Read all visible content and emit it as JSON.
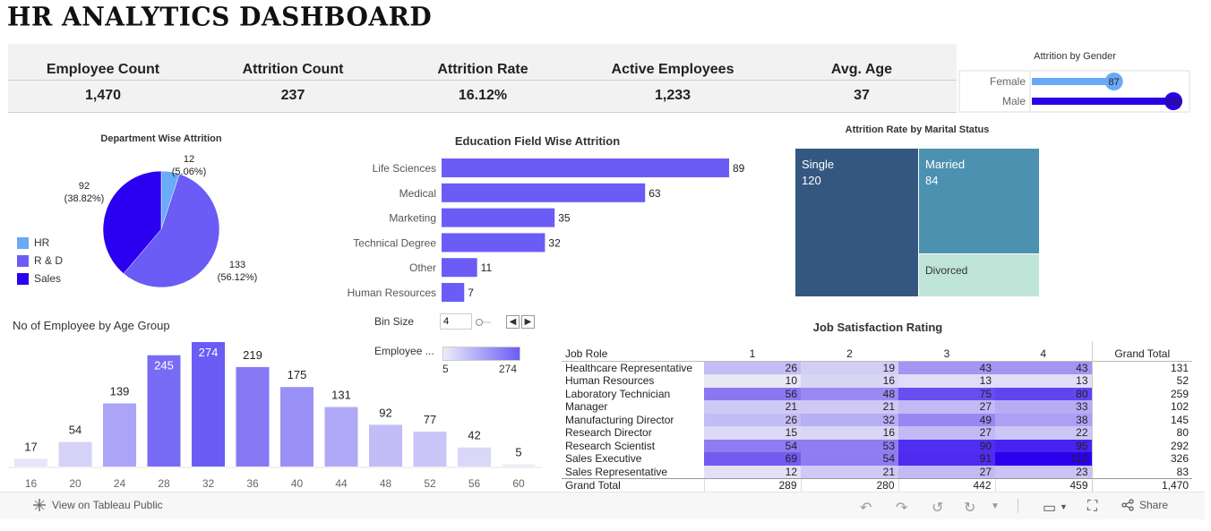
{
  "title": "HR ANALYTICS DASHBOARD",
  "kpis": [
    {
      "label": "Employee Count",
      "value": "1,470"
    },
    {
      "label": "Attrition Count",
      "value": "237"
    },
    {
      "label": "Attrition Rate",
      "value": "16.12%"
    },
    {
      "label": "Active Employees",
      "value": "1,233"
    },
    {
      "label": "Avg. Age",
      "value": "37"
    }
  ],
  "colors": {
    "hr": "#6aaaf6",
    "rd": "#6a5cf5",
    "sales": "#2b00f0",
    "edu_bar": "#6a5cf5",
    "female": "#69a9f5",
    "male": "#2a00e8",
    "single": "#34577f",
    "married": "#4c91af",
    "divorced": "#bfe4d8"
  },
  "chart_data": [
    {
      "id": "gender",
      "type": "bar",
      "title": "Attrition by Gender",
      "categories": [
        "Female",
        "Male"
      ],
      "values": [
        87,
        150
      ],
      "value_labels": [
        "87",
        "150"
      ]
    },
    {
      "id": "department",
      "type": "pie",
      "title": "Department Wise Attrition",
      "categories": [
        "HR",
        "R & D",
        "Sales"
      ],
      "values": [
        12,
        133,
        92
      ],
      "percent_labels": [
        "(5.06%)",
        "(56.12%)",
        "(38.82%)"
      ],
      "legend": "left"
    },
    {
      "id": "education",
      "type": "bar",
      "title": "Education Field Wise Attrition",
      "categories": [
        "Life Sciences",
        "Medical",
        "Marketing",
        "Technical Degree",
        "Other",
        "Human Resources"
      ],
      "values": [
        89,
        63,
        35,
        32,
        11,
        7
      ]
    },
    {
      "id": "marital",
      "type": "heatmap",
      "title": "Attrition Rate by Marital Status",
      "categories": [
        "Single",
        "Married",
        "Divorced"
      ],
      "values": [
        120,
        84,
        null
      ],
      "value_labels": [
        "120",
        "84",
        ""
      ]
    },
    {
      "id": "age",
      "type": "bar",
      "title": "No of Employee by Age Group",
      "categories": [
        "16",
        "20",
        "24",
        "28",
        "32",
        "36",
        "40",
        "44",
        "48",
        "52",
        "56",
        "60"
      ],
      "values": [
        17,
        54,
        139,
        245,
        274,
        219,
        175,
        131,
        92,
        77,
        42,
        5
      ],
      "color_legend": {
        "title": "Employee ...",
        "min": "5",
        "max": "274"
      },
      "bin_size": {
        "label": "Bin Size",
        "value": "4"
      }
    },
    {
      "id": "job_satisfaction",
      "type": "table",
      "title": "Job Satisfaction Rating",
      "row_header": "Job Role",
      "columns": [
        "1",
        "2",
        "3",
        "4"
      ],
      "total_header": "Grand Total",
      "rows": [
        {
          "role": "Healthcare Representative",
          "values": [
            26,
            19,
            43,
            43
          ],
          "total": "131"
        },
        {
          "role": "Human Resources",
          "values": [
            10,
            16,
            13,
            13
          ],
          "total": "52"
        },
        {
          "role": "Laboratory Technician",
          "values": [
            56,
            48,
            75,
            80
          ],
          "total": "259"
        },
        {
          "role": "Manager",
          "values": [
            21,
            21,
            27,
            33
          ],
          "total": "102"
        },
        {
          "role": "Manufacturing Director",
          "values": [
            26,
            32,
            49,
            38
          ],
          "total": "145"
        },
        {
          "role": "Research Director",
          "values": [
            15,
            16,
            27,
            22
          ],
          "total": "80"
        },
        {
          "role": "Research Scientist",
          "values": [
            54,
            53,
            90,
            95
          ],
          "total": "292"
        },
        {
          "role": "Sales Executive",
          "values": [
            69,
            54,
            91,
            112
          ],
          "total": "326"
        },
        {
          "role": "Sales Representative",
          "values": [
            12,
            21,
            27,
            23
          ],
          "total": "83"
        }
      ],
      "grand_total": {
        "label": "Grand Total",
        "values": [
          "289",
          "280",
          "442",
          "459"
        ],
        "total": "1,470"
      }
    }
  ],
  "toolbar": {
    "view_label": "View on Tableau Public",
    "share_label": "Share",
    "icons": [
      "tableau-icon",
      "undo-icon",
      "redo-icon",
      "revert-icon",
      "refresh-icon",
      "download-icon",
      "fullscreen-icon",
      "share-icon"
    ]
  }
}
